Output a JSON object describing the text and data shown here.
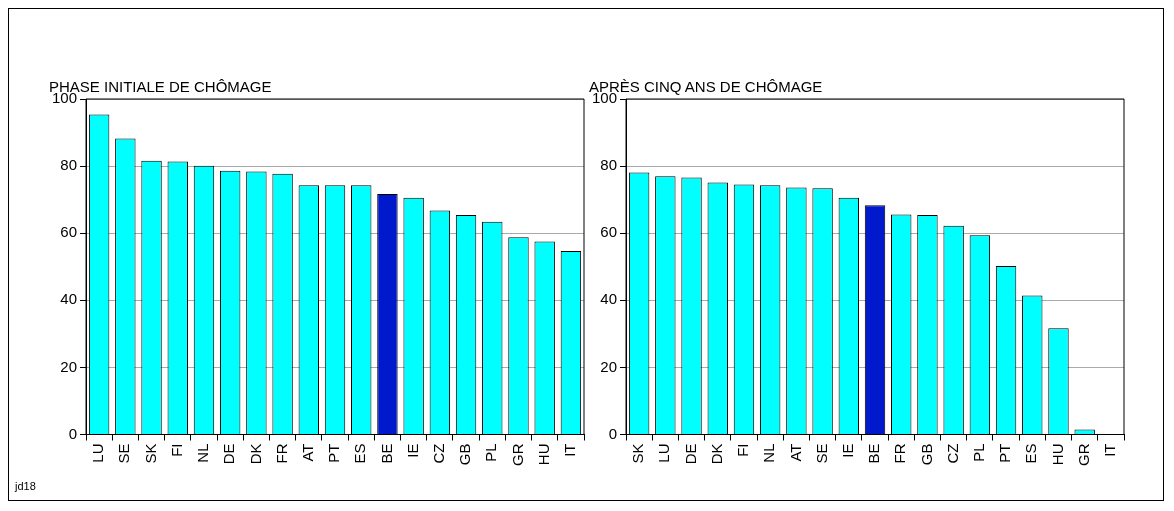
{
  "chart_data": [
    {
      "type": "bar",
      "title": "PHASE INITIALE DE CHÔMAGE",
      "categories": [
        "LU",
        "SE",
        "SK",
        "FI",
        "NL",
        "DE",
        "DK",
        "FR",
        "AT",
        "PT",
        "ES",
        "BE",
        "IE",
        "CZ",
        "GB",
        "PL",
        "GR",
        "HU",
        "IT"
      ],
      "values": [
        95.4,
        88.2,
        81.6,
        81.4,
        80.1,
        78.6,
        78.4,
        77.7,
        74.3,
        74.3,
        74.3,
        71.7,
        70.6,
        66.8,
        65.4,
        63.4,
        58.8,
        57.5,
        54.7
      ],
      "colors": [
        "#00ffff",
        "#00ffff",
        "#00ffff",
        "#00ffff",
        "#00ffff",
        "#00ffff",
        "#00ffff",
        "#00ffff",
        "#00ffff",
        "#00ffff",
        "#00ffff",
        "#0019cc",
        "#00ffff",
        "#00ffff",
        "#00ffff",
        "#00ffff",
        "#00ffff",
        "#00ffff",
        "#00ffff"
      ],
      "ylim": [
        0,
        100
      ],
      "yticks": [
        0,
        20,
        40,
        60,
        80,
        100
      ],
      "grid": "y",
      "legend": false,
      "annotations": [
        "jd18"
      ]
    },
    {
      "type": "bar",
      "title": "APRÈS CINQ ANS DE CHÔMAGE",
      "categories": [
        "SK",
        "LU",
        "DE",
        "DK",
        "FI",
        "NL",
        "AT",
        "SE",
        "IE",
        "BE",
        "FR",
        "GB",
        "CZ",
        "PL",
        "PT",
        "ES",
        "HU",
        "GR",
        "IT"
      ],
      "values": [
        78.1,
        77.0,
        76.6,
        75.1,
        74.5,
        74.3,
        73.6,
        73.4,
        70.6,
        68.3,
        65.6,
        65.4,
        62.2,
        59.4,
        50.2,
        41.4,
        31.7,
        1.5,
        0
      ],
      "colors": [
        "#00ffff",
        "#00ffff",
        "#00ffff",
        "#00ffff",
        "#00ffff",
        "#00ffff",
        "#00ffff",
        "#00ffff",
        "#00ffff",
        "#0019cc",
        "#00ffff",
        "#00ffff",
        "#00ffff",
        "#00ffff",
        "#00ffff",
        "#00ffff",
        "#00ffff",
        "#00ffff",
        "#00ffff"
      ],
      "ylim": [
        0,
        100
      ],
      "yticks": [
        0,
        20,
        40,
        60,
        80,
        100
      ],
      "grid": "y",
      "legend": false
    }
  ]
}
